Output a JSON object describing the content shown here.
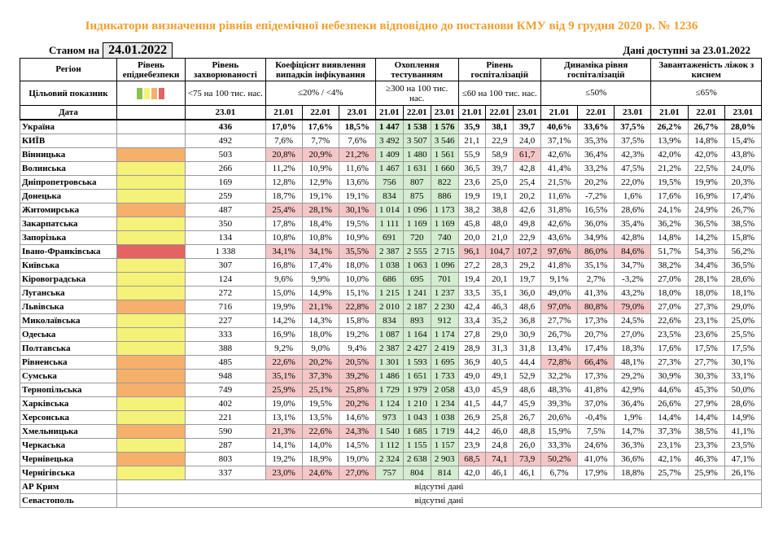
{
  "title": "Індикатори визначення рівнів епідемічної небезпеки відповідно до постанови КМУ від 9 грудня 2020 р. № 1236",
  "as_of_label": "Станом на",
  "as_of_date": "24.01.2022",
  "available_label": "Дані доступні за 23.01.2022",
  "headers": {
    "region": "Регіон",
    "level": "Рівень епіднебезпеки",
    "incidence": "Рівень захворюваності",
    "detection": "Коефіцієнт виявлення випадків інфікування",
    "testing": "Охоплення тестуванням",
    "hosp": "Рівень госпіталізацій",
    "hosp_dyn": "Динаміка рівня госпіталізацій",
    "oxygen": "Завантаженість ліжок з киснем"
  },
  "target": {
    "label": "Цільовий показник",
    "incidence": "<75 на 100 тис. нас.",
    "detection": "≤20% / <4%",
    "testing": "≥300 на 100 тис. нас.",
    "hosp": "≤60 на 100 тис. нас.",
    "hosp_dyn": "≤50%",
    "oxygen": "≤65%",
    "swatches": [
      "#8bc34a",
      "#f5f27a",
      "#f5b06b",
      "#e46464"
    ]
  },
  "date_row": {
    "label": "Дата",
    "incidence": "23.01",
    "d": [
      "21.01",
      "22.01",
      "23.01"
    ]
  },
  "rows": [
    {
      "name": "Україна",
      "level": "blank",
      "inc": "436",
      "det": [
        "17,0%",
        "17,6%",
        "18,5%"
      ],
      "test": [
        "1 447",
        "1 538",
        "1 576"
      ],
      "hosp": [
        "35,9",
        "38,1",
        "39,7"
      ],
      "dyn": [
        "40,6%",
        "33,6%",
        "37,5%"
      ],
      "oxy": [
        "26,2%",
        "26,7%",
        "28,0%"
      ],
      "bold": true,
      "detR": [
        0,
        0,
        0
      ],
      "hospR": [
        0,
        0,
        0
      ],
      "dynR": [
        0,
        0,
        0
      ]
    },
    {
      "name": "КИЇВ",
      "level": "blank",
      "inc": "492",
      "det": [
        "7,6%",
        "7,7%",
        "7,6%"
      ],
      "test": [
        "3 492",
        "3 507",
        "3 546"
      ],
      "hosp": [
        "21,1",
        "22,9",
        "24,0"
      ],
      "dyn": [
        "37,1%",
        "35,3%",
        "37,5%"
      ],
      "oxy": [
        "13,9%",
        "14,8%",
        "15,4%"
      ],
      "detR": [
        0,
        0,
        0
      ],
      "hospR": [
        0,
        0,
        0
      ],
      "dynR": [
        0,
        0,
        0
      ]
    },
    {
      "name": "Вінницька",
      "level": "orange",
      "inc": "503",
      "det": [
        "20,8%",
        "20,9%",
        "21,2%"
      ],
      "test": [
        "1 409",
        "1 480",
        "1 561"
      ],
      "hosp": [
        "55,9",
        "58,9",
        "61,7"
      ],
      "dyn": [
        "42,6%",
        "36,4%",
        "42,3%"
      ],
      "oxy": [
        "42,0%",
        "42,0%",
        "43,8%"
      ],
      "detR": [
        1,
        1,
        1
      ],
      "hospR": [
        0,
        0,
        1
      ],
      "dynR": [
        0,
        0,
        0
      ]
    },
    {
      "name": "Волинська",
      "level": "yellow",
      "inc": "266",
      "det": [
        "11,2%",
        "10,9%",
        "11,6%"
      ],
      "test": [
        "1 467",
        "1 631",
        "1 660"
      ],
      "hosp": [
        "36,5",
        "39,7",
        "42,8"
      ],
      "dyn": [
        "41,4%",
        "33,2%",
        "47,5%"
      ],
      "oxy": [
        "21,2%",
        "22,5%",
        "24,0%"
      ],
      "detR": [
        0,
        0,
        0
      ],
      "hospR": [
        0,
        0,
        0
      ],
      "dynR": [
        0,
        0,
        0
      ]
    },
    {
      "name": "Дніпропетровська",
      "level": "yellow",
      "inc": "169",
      "det": [
        "12,8%",
        "12,9%",
        "13,6%"
      ],
      "test": [
        "756",
        "807",
        "822"
      ],
      "hosp": [
        "23,6",
        "25,0",
        "25,4"
      ],
      "dyn": [
        "21,5%",
        "20,2%",
        "22,0%"
      ],
      "oxy": [
        "19,5%",
        "19,9%",
        "20,3%"
      ],
      "detR": [
        0,
        0,
        0
      ],
      "hospR": [
        0,
        0,
        0
      ],
      "dynR": [
        0,
        0,
        0
      ]
    },
    {
      "name": "Донецька",
      "level": "yellow",
      "inc": "259",
      "det": [
        "18,7%",
        "19,1%",
        "19,1%"
      ],
      "test": [
        "834",
        "875",
        "886"
      ],
      "hosp": [
        "19,9",
        "19,1",
        "20,2"
      ],
      "dyn": [
        "11,6%",
        "-7,2%",
        "1,6%"
      ],
      "oxy": [
        "17,6%",
        "16,9%",
        "17,4%"
      ],
      "detR": [
        0,
        0,
        0
      ],
      "hospR": [
        0,
        0,
        0
      ],
      "dynR": [
        0,
        0,
        0
      ]
    },
    {
      "name": "Житомирська",
      "level": "orange",
      "inc": "487",
      "det": [
        "25,4%",
        "28,1%",
        "30,1%"
      ],
      "test": [
        "1 014",
        "1 096",
        "1 173"
      ],
      "hosp": [
        "38,2",
        "38,8",
        "42,6"
      ],
      "dyn": [
        "31,8%",
        "16,5%",
        "28,6%"
      ],
      "oxy": [
        "24,1%",
        "24,9%",
        "26,7%"
      ],
      "detR": [
        1,
        1,
        1
      ],
      "hospR": [
        0,
        0,
        0
      ],
      "dynR": [
        0,
        0,
        0
      ]
    },
    {
      "name": "Закарпатська",
      "level": "yellow",
      "inc": "350",
      "det": [
        "17,8%",
        "18,4%",
        "19,5%"
      ],
      "test": [
        "1 111",
        "1 169",
        "1 169"
      ],
      "hosp": [
        "45,8",
        "48,0",
        "49,8"
      ],
      "dyn": [
        "42,6%",
        "36,0%",
        "35,4%"
      ],
      "oxy": [
        "36,2%",
        "36,5%",
        "38,5%"
      ],
      "detR": [
        0,
        0,
        0
      ],
      "hospR": [
        0,
        0,
        0
      ],
      "dynR": [
        0,
        0,
        0
      ]
    },
    {
      "name": "Запорізька",
      "level": "yellow",
      "inc": "134",
      "det": [
        "10,8%",
        "10,8%",
        "10,9%"
      ],
      "test": [
        "691",
        "720",
        "740"
      ],
      "hosp": [
        "20,0",
        "21,0",
        "22,9"
      ],
      "dyn": [
        "43,6%",
        "34,9%",
        "42,8%"
      ],
      "oxy": [
        "14,8%",
        "14,2%",
        "15,8%"
      ],
      "detR": [
        0,
        0,
        0
      ],
      "hospR": [
        0,
        0,
        0
      ],
      "dynR": [
        0,
        0,
        0
      ]
    },
    {
      "name": "Івано-Франківська",
      "level": "red",
      "inc": "1 338",
      "det": [
        "34,1%",
        "34,1%",
        "35,5%"
      ],
      "test": [
        "2 387",
        "2 555",
        "2 715"
      ],
      "hosp": [
        "96,1",
        "104,7",
        "107,2"
      ],
      "dyn": [
        "97,6%",
        "86,0%",
        "84,6%"
      ],
      "oxy": [
        "51,7%",
        "54,3%",
        "56,2%"
      ],
      "detR": [
        1,
        1,
        1
      ],
      "hospR": [
        1,
        1,
        1
      ],
      "dynR": [
        1,
        1,
        1
      ]
    },
    {
      "name": "Київська",
      "level": "yellow",
      "inc": "307",
      "det": [
        "16,8%",
        "17,4%",
        "18,0%"
      ],
      "test": [
        "1 038",
        "1 063",
        "1 096"
      ],
      "hosp": [
        "27,2",
        "28,3",
        "29,2"
      ],
      "dyn": [
        "41,8%",
        "35,1%",
        "34,7%"
      ],
      "oxy": [
        "38,2%",
        "34,4%",
        "36,5%"
      ],
      "detR": [
        0,
        0,
        0
      ],
      "hospR": [
        0,
        0,
        0
      ],
      "dynR": [
        0,
        0,
        0
      ]
    },
    {
      "name": "Кіровоградська",
      "level": "yellow",
      "inc": "124",
      "det": [
        "9,6%",
        "9,9%",
        "10,0%"
      ],
      "test": [
        "686",
        "695",
        "701"
      ],
      "hosp": [
        "19,4",
        "20,1",
        "19,7"
      ],
      "dyn": [
        "9,1%",
        "2,7%",
        "-3,2%"
      ],
      "oxy": [
        "27,0%",
        "28,1%",
        "28,6%"
      ],
      "detR": [
        0,
        0,
        0
      ],
      "hospR": [
        0,
        0,
        0
      ],
      "dynR": [
        0,
        0,
        0
      ]
    },
    {
      "name": "Луганська",
      "level": "yellow",
      "inc": "272",
      "det": [
        "15,0%",
        "14,9%",
        "15,1%"
      ],
      "test": [
        "1 215",
        "1 241",
        "1 237"
      ],
      "hosp": [
        "33,5",
        "35,1",
        "36,0"
      ],
      "dyn": [
        "49,0%",
        "41,3%",
        "43,2%"
      ],
      "oxy": [
        "18,0%",
        "18,0%",
        "18,1%"
      ],
      "detR": [
        0,
        0,
        0
      ],
      "hospR": [
        0,
        0,
        0
      ],
      "dynR": [
        0,
        0,
        0
      ]
    },
    {
      "name": "Львівська",
      "level": "orange",
      "inc": "716",
      "det": [
        "19,9%",
        "21,1%",
        "22,8%"
      ],
      "test": [
        "2 010",
        "2 187",
        "2 230"
      ],
      "hosp": [
        "42,4",
        "46,3",
        "48,6"
      ],
      "dyn": [
        "97,0%",
        "80,8%",
        "79,0%"
      ],
      "oxy": [
        "27,0%",
        "27,3%",
        "29,0%"
      ],
      "detR": [
        0,
        1,
        1
      ],
      "hospR": [
        0,
        0,
        0
      ],
      "dynR": [
        1,
        1,
        1
      ]
    },
    {
      "name": "Миколаївська",
      "level": "yellow",
      "inc": "227",
      "det": [
        "14,2%",
        "14,3%",
        "15,8%"
      ],
      "test": [
        "834",
        "893",
        "912"
      ],
      "hosp": [
        "33,4",
        "35,2",
        "36,8"
      ],
      "dyn": [
        "27,7%",
        "17,3%",
        "24,5%"
      ],
      "oxy": [
        "22,6%",
        "23,1%",
        "25,0%"
      ],
      "detR": [
        0,
        0,
        0
      ],
      "hospR": [
        0,
        0,
        0
      ],
      "dynR": [
        0,
        0,
        0
      ]
    },
    {
      "name": "Одеська",
      "level": "yellow",
      "inc": "333",
      "det": [
        "16,9%",
        "18,0%",
        "19,2%"
      ],
      "test": [
        "1 087",
        "1 164",
        "1 174"
      ],
      "hosp": [
        "27,8",
        "29,0",
        "30,9"
      ],
      "dyn": [
        "26,7%",
        "20,7%",
        "27,0%"
      ],
      "oxy": [
        "23,5%",
        "23,6%",
        "25,5%"
      ],
      "detR": [
        0,
        0,
        0
      ],
      "hospR": [
        0,
        0,
        0
      ],
      "dynR": [
        0,
        0,
        0
      ]
    },
    {
      "name": "Полтавська",
      "level": "yellow",
      "inc": "388",
      "det": [
        "9,2%",
        "9,0%",
        "9,4%"
      ],
      "test": [
        "2 387",
        "2 427",
        "2 419"
      ],
      "hosp": [
        "28,9",
        "31,3",
        "31,8"
      ],
      "dyn": [
        "13,4%",
        "17,4%",
        "18,3%"
      ],
      "oxy": [
        "17,6%",
        "17,5%",
        "17,5%"
      ],
      "detR": [
        0,
        0,
        0
      ],
      "hospR": [
        0,
        0,
        0
      ],
      "dynR": [
        0,
        0,
        0
      ]
    },
    {
      "name": "Рівненська",
      "level": "orange",
      "inc": "485",
      "det": [
        "22,6%",
        "20,2%",
        "20,5%"
      ],
      "test": [
        "1 301",
        "1 593",
        "1 695"
      ],
      "hosp": [
        "36,9",
        "40,5",
        "44,4"
      ],
      "dyn": [
        "72,8%",
        "66,4%",
        "48,1%"
      ],
      "oxy": [
        "27,3%",
        "27,7%",
        "30,1%"
      ],
      "detR": [
        1,
        1,
        1
      ],
      "hospR": [
        0,
        0,
        0
      ],
      "dynR": [
        1,
        1,
        0
      ]
    },
    {
      "name": "Сумська",
      "level": "orange",
      "inc": "948",
      "det": [
        "35,1%",
        "37,3%",
        "39,2%"
      ],
      "test": [
        "1 486",
        "1 651",
        "1 733"
      ],
      "hosp": [
        "49,0",
        "49,1",
        "52,9"
      ],
      "dyn": [
        "32,2%",
        "17,3%",
        "29,2%"
      ],
      "oxy": [
        "30,9%",
        "30,3%",
        "33,1%"
      ],
      "detR": [
        1,
        1,
        1
      ],
      "hospR": [
        0,
        0,
        0
      ],
      "dynR": [
        0,
        0,
        0
      ]
    },
    {
      "name": "Тернопільська",
      "level": "orange",
      "inc": "749",
      "det": [
        "25,9%",
        "25,1%",
        "25,8%"
      ],
      "test": [
        "1 729",
        "1 979",
        "2 058"
      ],
      "hosp": [
        "43,0",
        "45,9",
        "48,6"
      ],
      "dyn": [
        "48,3%",
        "41,8%",
        "42,9%"
      ],
      "oxy": [
        "44,6%",
        "45,3%",
        "50,0%"
      ],
      "detR": [
        1,
        1,
        1
      ],
      "hospR": [
        0,
        0,
        0
      ],
      "dynR": [
        0,
        0,
        0
      ]
    },
    {
      "name": "Харківська",
      "level": "yellow",
      "inc": "402",
      "det": [
        "19,0%",
        "19,5%",
        "20,2%"
      ],
      "test": [
        "1 124",
        "1 210",
        "1 234"
      ],
      "hosp": [
        "41,5",
        "44,7",
        "45,9"
      ],
      "dyn": [
        "39,3%",
        "37,0%",
        "36,4%"
      ],
      "oxy": [
        "26,6%",
        "27,9%",
        "28,6%"
      ],
      "detR": [
        0,
        0,
        1
      ],
      "hospR": [
        0,
        0,
        0
      ],
      "dynR": [
        0,
        0,
        0
      ]
    },
    {
      "name": "Херсонська",
      "level": "yellow",
      "inc": "221",
      "det": [
        "13,1%",
        "13,5%",
        "14,6%"
      ],
      "test": [
        "973",
        "1 043",
        "1 038"
      ],
      "hosp": [
        "26,9",
        "25,8",
        "26,7"
      ],
      "dyn": [
        "20,6%",
        "-0,4%",
        "1,9%"
      ],
      "oxy": [
        "14,4%",
        "14,4%",
        "14,9%"
      ],
      "detR": [
        0,
        0,
        0
      ],
      "hospR": [
        0,
        0,
        0
      ],
      "dynR": [
        0,
        0,
        0
      ]
    },
    {
      "name": "Хмельницька",
      "level": "orange",
      "inc": "590",
      "det": [
        "21,3%",
        "22,6%",
        "24,3%"
      ],
      "test": [
        "1 540",
        "1 685",
        "1 719"
      ],
      "hosp": [
        "44,2",
        "46,0",
        "48,8"
      ],
      "dyn": [
        "15,9%",
        "7,5%",
        "14,7%"
      ],
      "oxy": [
        "37,3%",
        "38,5%",
        "41,1%"
      ],
      "detR": [
        1,
        1,
        1
      ],
      "hospR": [
        0,
        0,
        0
      ],
      "dynR": [
        0,
        0,
        0
      ]
    },
    {
      "name": "Черкаська",
      "level": "yellow",
      "inc": "287",
      "det": [
        "14,1%",
        "14,0%",
        "14,5%"
      ],
      "test": [
        "1 112",
        "1 155",
        "1 157"
      ],
      "hosp": [
        "23,9",
        "24,8",
        "26,0"
      ],
      "dyn": [
        "33,3%",
        "24,6%",
        "36,3%"
      ],
      "oxy": [
        "23,1%",
        "23,3%",
        "23,5%"
      ],
      "detR": [
        0,
        0,
        0
      ],
      "hospR": [
        0,
        0,
        0
      ],
      "dynR": [
        0,
        0,
        0
      ]
    },
    {
      "name": "Чернівецька",
      "level": "orange",
      "inc": "803",
      "det": [
        "19,2%",
        "18,9%",
        "19,0%"
      ],
      "test": [
        "2 324",
        "2 638",
        "2 903"
      ],
      "hosp": [
        "68,5",
        "74,1",
        "73,9"
      ],
      "dyn": [
        "50,2%",
        "41,0%",
        "36,6%"
      ],
      "oxy": [
        "42,1%",
        "46,3%",
        "47,1%"
      ],
      "detR": [
        0,
        0,
        0
      ],
      "hospR": [
        1,
        1,
        1
      ],
      "dynR": [
        1,
        0,
        0
      ]
    },
    {
      "name": "Чернігівська",
      "level": "yellow",
      "inc": "337",
      "det": [
        "23,0%",
        "24,6%",
        "27,0%"
      ],
      "test": [
        "757",
        "804",
        "814"
      ],
      "hosp": [
        "42,0",
        "46,1",
        "46,1"
      ],
      "dyn": [
        "6,7%",
        "17,9%",
        "18,8%"
      ],
      "oxy": [
        "25,7%",
        "25,9%",
        "26,1%"
      ],
      "detR": [
        1,
        1,
        1
      ],
      "hospR": [
        0,
        0,
        0
      ],
      "dynR": [
        0,
        0,
        0
      ]
    }
  ],
  "na_rows": [
    {
      "name": "АР Крим",
      "text": "відсутні дані"
    },
    {
      "name": "Севастополь",
      "text": "відсутні дані"
    }
  ]
}
